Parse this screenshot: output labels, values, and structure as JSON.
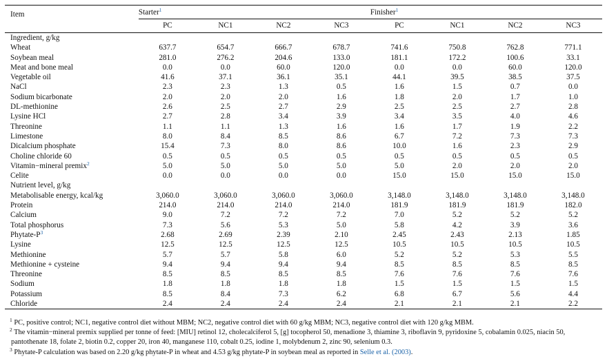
{
  "header": {
    "item": "Item",
    "starter": "Starter",
    "starter_mark": "1",
    "finisher": "Finisher",
    "finisher_mark": "1",
    "starter_cols": [
      "PC",
      "NC1",
      "NC2",
      "NC3"
    ],
    "finisher_cols": [
      "PC",
      "NC1",
      "NC2",
      "NC3"
    ]
  },
  "ingredients_heading": "Ingredient, g/kg",
  "ingredients": [
    {
      "name": "Wheat",
      "values": [
        "637.7",
        "654.7",
        "666.7",
        "678.7",
        "741.6",
        "750.8",
        "762.8",
        "771.1"
      ]
    },
    {
      "name": "Soybean meal",
      "values": [
        "281.0",
        "276.2",
        "204.6",
        "133.0",
        "181.1",
        "172.2",
        "100.6",
        "33.1"
      ]
    },
    {
      "name": "Meat and bone meal",
      "values": [
        "0.0",
        "0.0",
        "60.0",
        "120.0",
        "0.0",
        "0.0",
        "60.0",
        "120.0"
      ]
    },
    {
      "name": "Vegetable oil",
      "values": [
        "41.6",
        "37.1",
        "36.1",
        "35.1",
        "44.1",
        "39.5",
        "38.5",
        "37.5"
      ]
    },
    {
      "name": "NaCl",
      "values": [
        "2.3",
        "2.3",
        "1.3",
        "0.5",
        "1.6",
        "1.5",
        "0.7",
        "0.0"
      ]
    },
    {
      "name": "Sodium bicarbonate",
      "values": [
        "2.0",
        "2.0",
        "2.0",
        "1.6",
        "1.8",
        "2.0",
        "1.7",
        "1.0"
      ]
    },
    {
      "name": "DL-methionine",
      "values": [
        "2.6",
        "2.5",
        "2.7",
        "2.9",
        "2.5",
        "2.5",
        "2.7",
        "2.8"
      ]
    },
    {
      "name": "Lysine HCl",
      "values": [
        "2.7",
        "2.8",
        "3.4",
        "3.9",
        "3.4",
        "3.5",
        "4.0",
        "4.6"
      ]
    },
    {
      "name": "Threonine",
      "values": [
        "1.1",
        "1.1",
        "1.3",
        "1.6",
        "1.6",
        "1.7",
        "1.9",
        "2.2"
      ]
    },
    {
      "name": "Limestone",
      "values": [
        "8.0",
        "8.4",
        "8.5",
        "8.6",
        "6.7",
        "7.2",
        "7.3",
        "7.3"
      ]
    },
    {
      "name": "Dicalcium phosphate",
      "values": [
        "15.4",
        "7.3",
        "8.0",
        "8.6",
        "10.0",
        "1.6",
        "2.3",
        "2.9"
      ]
    },
    {
      "name": "Choline chloride 60",
      "values": [
        "0.5",
        "0.5",
        "0.5",
        "0.5",
        "0.5",
        "0.5",
        "0.5",
        "0.5"
      ]
    },
    {
      "name": "Vitamin−mineral premix",
      "mark": "2",
      "values": [
        "5.0",
        "5.0",
        "5.0",
        "5.0",
        "5.0",
        "2.0",
        "2.0",
        "2.0"
      ]
    },
    {
      "name": "Celite",
      "values": [
        "0.0",
        "0.0",
        "0.0",
        "0.0",
        "15.0",
        "15.0",
        "15.0",
        "15.0"
      ]
    }
  ],
  "nutrients_heading": "Nutrient level, g/kg",
  "nutrients": [
    {
      "name": "Metabolisable energy, kcal/kg",
      "values": [
        "3,060.0",
        "3,060.0",
        "3,060.0",
        "3,060.0",
        "3,148.0",
        "3,148.0",
        "3,148.0",
        "3,148.0"
      ]
    },
    {
      "name": "Protein",
      "values": [
        "214.0",
        "214.0",
        "214.0",
        "214.0",
        "181.9",
        "181.9",
        "181.9",
        "182.0"
      ]
    },
    {
      "name": "Calcium",
      "values": [
        "9.0",
        "7.2",
        "7.2",
        "7.2",
        "7.0",
        "5.2",
        "5.2",
        "5.2"
      ]
    },
    {
      "name": "Total phosphorus",
      "values": [
        "7.3",
        "5.6",
        "5.3",
        "5.0",
        "5.8",
        "4.2",
        "3.9",
        "3.6"
      ]
    },
    {
      "name": "Phytate-P",
      "mark": "3",
      "values": [
        "2.68",
        "2.69",
        "2.39",
        "2.10",
        "2.45",
        "2.43",
        "2.13",
        "1.85"
      ]
    },
    {
      "name": "Lysine",
      "values": [
        "12.5",
        "12.5",
        "12.5",
        "12.5",
        "10.5",
        "10.5",
        "10.5",
        "10.5"
      ]
    },
    {
      "name": "Methionine",
      "values": [
        "5.7",
        "5.7",
        "5.8",
        "6.0",
        "5.2",
        "5.2",
        "5.3",
        "5.5"
      ]
    },
    {
      "name": "Methionine + cysteine",
      "values": [
        "9.4",
        "9.4",
        "9.4",
        "9.4",
        "8.5",
        "8.5",
        "8.5",
        "8.5"
      ]
    },
    {
      "name": "Threonine",
      "values": [
        "8.5",
        "8.5",
        "8.5",
        "8.5",
        "7.6",
        "7.6",
        "7.6",
        "7.6"
      ]
    },
    {
      "name": "Sodium",
      "values": [
        "1.8",
        "1.8",
        "1.8",
        "1.8",
        "1.5",
        "1.5",
        "1.5",
        "1.5"
      ]
    },
    {
      "name": "Potassium",
      "values": [
        "8.5",
        "8.4",
        "7.3",
        "6.2",
        "6.8",
        "6.7",
        "5.6",
        "4.4"
      ]
    },
    {
      "name": "Chloride",
      "values": [
        "2.4",
        "2.4",
        "2.4",
        "2.4",
        "2.1",
        "2.1",
        "2.1",
        "2.2"
      ]
    }
  ],
  "footnotes": [
    {
      "mark": "1",
      "text": "PC, positive control; NC1, negative control diet without MBM; NC2, negative control diet with 60 g/kg MBM; NC3, negative control diet with 120 g/kg MBM."
    },
    {
      "mark": "2",
      "text": "The vitamin−mineral premix supplied per tonne of feed: [MIU] retinol 12, cholecalciferol 5, [g] tocopherol 50, menadione 3, thiamine 3, riboflavin 9, pyridoxine 5, cobalamin 0.025, niacin 50, pantothenate 18, folate 2, biotin 0.2, copper 20, iron 40, manganese 110, cobalt 0.25, iodine 1, molybdenum 2, zinc 90, selenium 0.3."
    },
    {
      "mark": "3",
      "text": "Phytate-P calculation was based on 2.20 g/kg phytate-P in wheat and 4.53 g/kg phytate-P in soybean meal as reported in ",
      "link": "Selle et al. (2003)",
      "tail": "."
    }
  ],
  "colors": {
    "link": "#1a62a8",
    "rule": "#111111",
    "text": "#111111"
  }
}
